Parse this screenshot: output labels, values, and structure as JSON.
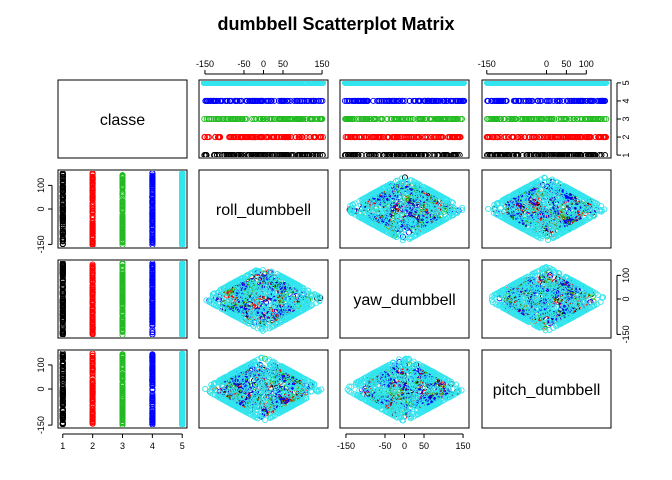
{
  "chart_data": {
    "type": "scatter",
    "title": "dumbbell Scatterplot Matrix",
    "variables": [
      "classe",
      "roll_dumbbell",
      "yaw_dumbbell",
      "pitch_dumbbell"
    ],
    "ranges": {
      "classe": [
        1,
        5
      ],
      "roll_dumbbell": [
        -153,
        153
      ],
      "yaw_dumbbell": [
        -153,
        153
      ],
      "pitch_dumbbell": [
        -150,
        150
      ]
    },
    "ticks": {
      "classe": [
        1,
        2,
        3,
        4,
        5
      ],
      "roll_dumbbell": [
        -150,
        -50,
        0,
        50,
        150
      ],
      "yaw_dumbbell": [
        -150,
        -50,
        0,
        50,
        150
      ],
      "pitch_dumbbell": [
        -150,
        0,
        50,
        100
      ],
      "pitch_dumbbell_side": [
        -150,
        0,
        100
      ]
    },
    "classes": [
      {
        "value": 1,
        "color": "#000000"
      },
      {
        "value": 2,
        "color": "#ff0000"
      },
      {
        "value": 3,
        "color": "#22bb22"
      },
      {
        "value": 4,
        "color": "#0000ff"
      },
      {
        "value": 5,
        "color": "#33e5ee"
      }
    ],
    "legend": "none",
    "grid": false
  }
}
